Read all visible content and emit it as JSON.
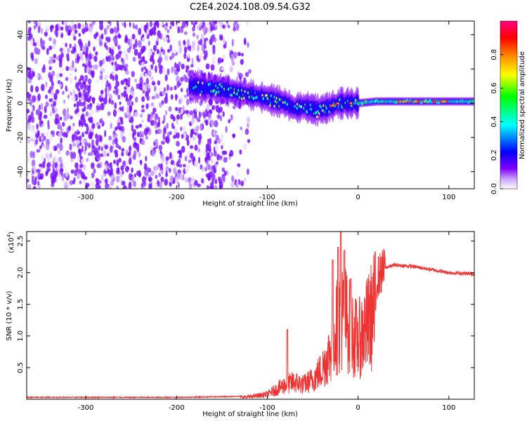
{
  "title": "C2E4.2024.108.09.54.G32",
  "chart_data": [
    {
      "type": "heatmap",
      "xlabel": "Height of straight line (km)",
      "ylabel": "Frequency (Hz)",
      "xlim": [
        -365,
        128
      ],
      "ylim": [
        -50,
        48
      ],
      "xticks": [
        "-300",
        "-200",
        "-100",
        "0",
        "100"
      ],
      "yticks": [
        "40",
        "20",
        "0",
        "-20",
        "-40"
      ],
      "colorbar": {
        "label": "Normalized spectral amplitude",
        "range": [
          0,
          1
        ],
        "ticks": [
          "0.0",
          "0.2",
          "0.4",
          "0.6",
          "0.8"
        ],
        "colormap": [
          "#ffffff",
          "#8000ff",
          "#0000ff",
          "#00ffff",
          "#00ff00",
          "#ffff00",
          "#ff8000",
          "#ff0000",
          "#ff0080"
        ]
      },
      "trace": {
        "description_x": [
          -185,
          -170,
          -150,
          -130,
          -110,
          -95,
          -80,
          -70,
          -60,
          -45,
          -35,
          -20,
          0,
          20,
          50,
          80,
          100,
          128
        ],
        "y": [
          10,
          9,
          8,
          6,
          4,
          2,
          0,
          -3,
          -2,
          -4,
          -3,
          0,
          0,
          1,
          1,
          1,
          1,
          1
        ],
        "noise_region_x": [
          -365,
          -160
        ]
      }
    },
    {
      "type": "line",
      "xlabel": "Height of straight line (km)",
      "ylabel": "SNR (10 * v/v)",
      "scale_label": "(x10",
      "scale_exp": "4",
      "xlim": [
        -365,
        128
      ],
      "ylim": [
        0,
        2.65
      ],
      "xticks": [
        "-300",
        "-200",
        "-100",
        "0",
        "100"
      ],
      "yticks": [
        "2.5",
        "2.0",
        "1.5",
        "1.0",
        "0.5"
      ],
      "series": [
        {
          "color": "#ee3333",
          "x": [
            -365,
            -300,
            -200,
            -150,
            -120,
            -100,
            -90,
            -80,
            -70,
            -60,
            -50,
            -40,
            -30,
            -25,
            -20,
            -15,
            -10,
            -5,
            0,
            10,
            20,
            30,
            40,
            60,
            80,
            100,
            128
          ],
          "y": [
            0.03,
            0.03,
            0.03,
            0.04,
            0.05,
            0.1,
            0.2,
            0.3,
            0.35,
            0.3,
            0.4,
            0.6,
            1.0,
            1.4,
            1.6,
            1.7,
            1.5,
            1.3,
            1.2,
            1.5,
            1.9,
            2.08,
            2.12,
            2.1,
            2.05,
            2.0,
            1.98
          ],
          "spike_x": [
            -78,
            -28,
            -22,
            -19,
            -15,
            -8
          ],
          "spike_y": [
            1.1,
            2.2,
            2.4,
            2.65,
            2.35,
            1.9
          ]
        }
      ]
    }
  ]
}
